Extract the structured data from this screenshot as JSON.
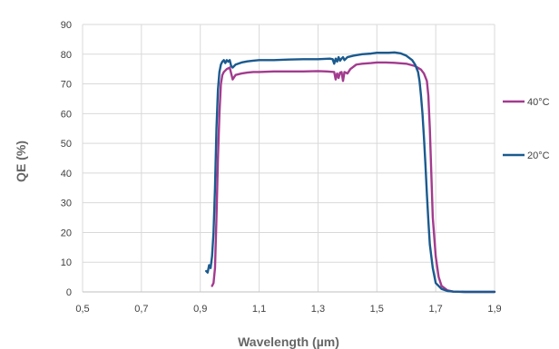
{
  "chart_data": {
    "type": "line",
    "xlabel": "Wavelength (µm)",
    "ylabel": "QE (%)",
    "xlim": [
      0.5,
      1.9
    ],
    "ylim": [
      0,
      90
    ],
    "x_ticks": [
      0.5,
      0.7,
      0.9,
      1.1,
      1.3,
      1.5,
      1.7,
      1.9
    ],
    "x_tick_labels": [
      "0,5",
      "0,7",
      "0,9",
      "1,1",
      "1,3",
      "1,5",
      "1,7",
      "1,9"
    ],
    "y_ticks": [
      0,
      10,
      20,
      30,
      40,
      50,
      60,
      70,
      80,
      90
    ],
    "y_tick_labels": [
      "0",
      "10",
      "20",
      "30",
      "40",
      "50",
      "60",
      "70",
      "80",
      "90"
    ],
    "grid": "vertical-and-horizontal",
    "legend_position": "right",
    "series": [
      {
        "name": "40°C",
        "color": "#A23B8E",
        "x": [
          0.94,
          0.945,
          0.95,
          0.955,
          0.96,
          0.965,
          0.97,
          0.975,
          0.98,
          0.99,
          1.0,
          1.01,
          1.02,
          1.04,
          1.06,
          1.08,
          1.1,
          1.15,
          1.2,
          1.25,
          1.3,
          1.33,
          1.355,
          1.36,
          1.365,
          1.37,
          1.375,
          1.38,
          1.385,
          1.39,
          1.4,
          1.41,
          1.43,
          1.45,
          1.48,
          1.5,
          1.53,
          1.56,
          1.6,
          1.63,
          1.65,
          1.66,
          1.67,
          1.675,
          1.68,
          1.685,
          1.69,
          1.7,
          1.71,
          1.72,
          1.74,
          1.76,
          1.8,
          1.85,
          1.9
        ],
        "y": [
          2,
          3,
          8,
          25,
          45,
          60,
          70,
          73,
          74,
          75,
          75.5,
          71.5,
          73,
          73.5,
          73.8,
          74,
          74,
          74.2,
          74.2,
          74.2,
          74.3,
          74.2,
          74,
          71.5,
          73.5,
          72,
          73.8,
          74,
          71,
          74,
          73.5,
          75,
          76.5,
          76.8,
          77,
          77.2,
          77.2,
          77.1,
          76.8,
          76,
          74.8,
          73.5,
          71,
          66,
          55,
          40,
          25,
          12,
          5,
          2,
          0.5,
          0.1,
          0,
          0,
          0
        ]
      },
      {
        "name": "20°C",
        "color": "#1B5A8E",
        "x": [
          0.92,
          0.925,
          0.93,
          0.935,
          0.94,
          0.945,
          0.95,
          0.955,
          0.96,
          0.965,
          0.97,
          0.975,
          0.98,
          0.985,
          0.99,
          0.995,
          1.0,
          1.005,
          1.01,
          1.02,
          1.04,
          1.06,
          1.08,
          1.1,
          1.15,
          1.2,
          1.25,
          1.3,
          1.34,
          1.35,
          1.355,
          1.36,
          1.365,
          1.37,
          1.375,
          1.38,
          1.385,
          1.39,
          1.4,
          1.42,
          1.45,
          1.48,
          1.5,
          1.52,
          1.54,
          1.56,
          1.58,
          1.6,
          1.62,
          1.63,
          1.64,
          1.645,
          1.65,
          1.655,
          1.66,
          1.665,
          1.67,
          1.675,
          1.68,
          1.69,
          1.7,
          1.72,
          1.74,
          1.76,
          1.8,
          1.85,
          1.9
        ],
        "y": [
          7,
          6.5,
          9,
          8,
          12,
          20,
          35,
          55,
          68,
          74,
          76.5,
          77.5,
          78,
          77,
          78,
          77.5,
          78,
          76,
          75.5,
          76.5,
          77.2,
          77.6,
          77.8,
          78,
          78,
          78.2,
          78.3,
          78.3,
          78.5,
          78.3,
          76.8,
          78.5,
          77.5,
          79,
          77.8,
          78.5,
          79,
          78,
          79,
          79.5,
          80,
          80.2,
          80.5,
          80.5,
          80.5,
          80.6,
          80.3,
          79.5,
          78,
          76.5,
          74,
          71,
          66,
          60,
          52,
          43,
          33,
          24,
          16,
          8,
          3,
          1,
          0.3,
          0.1,
          0,
          0,
          0
        ]
      }
    ]
  }
}
